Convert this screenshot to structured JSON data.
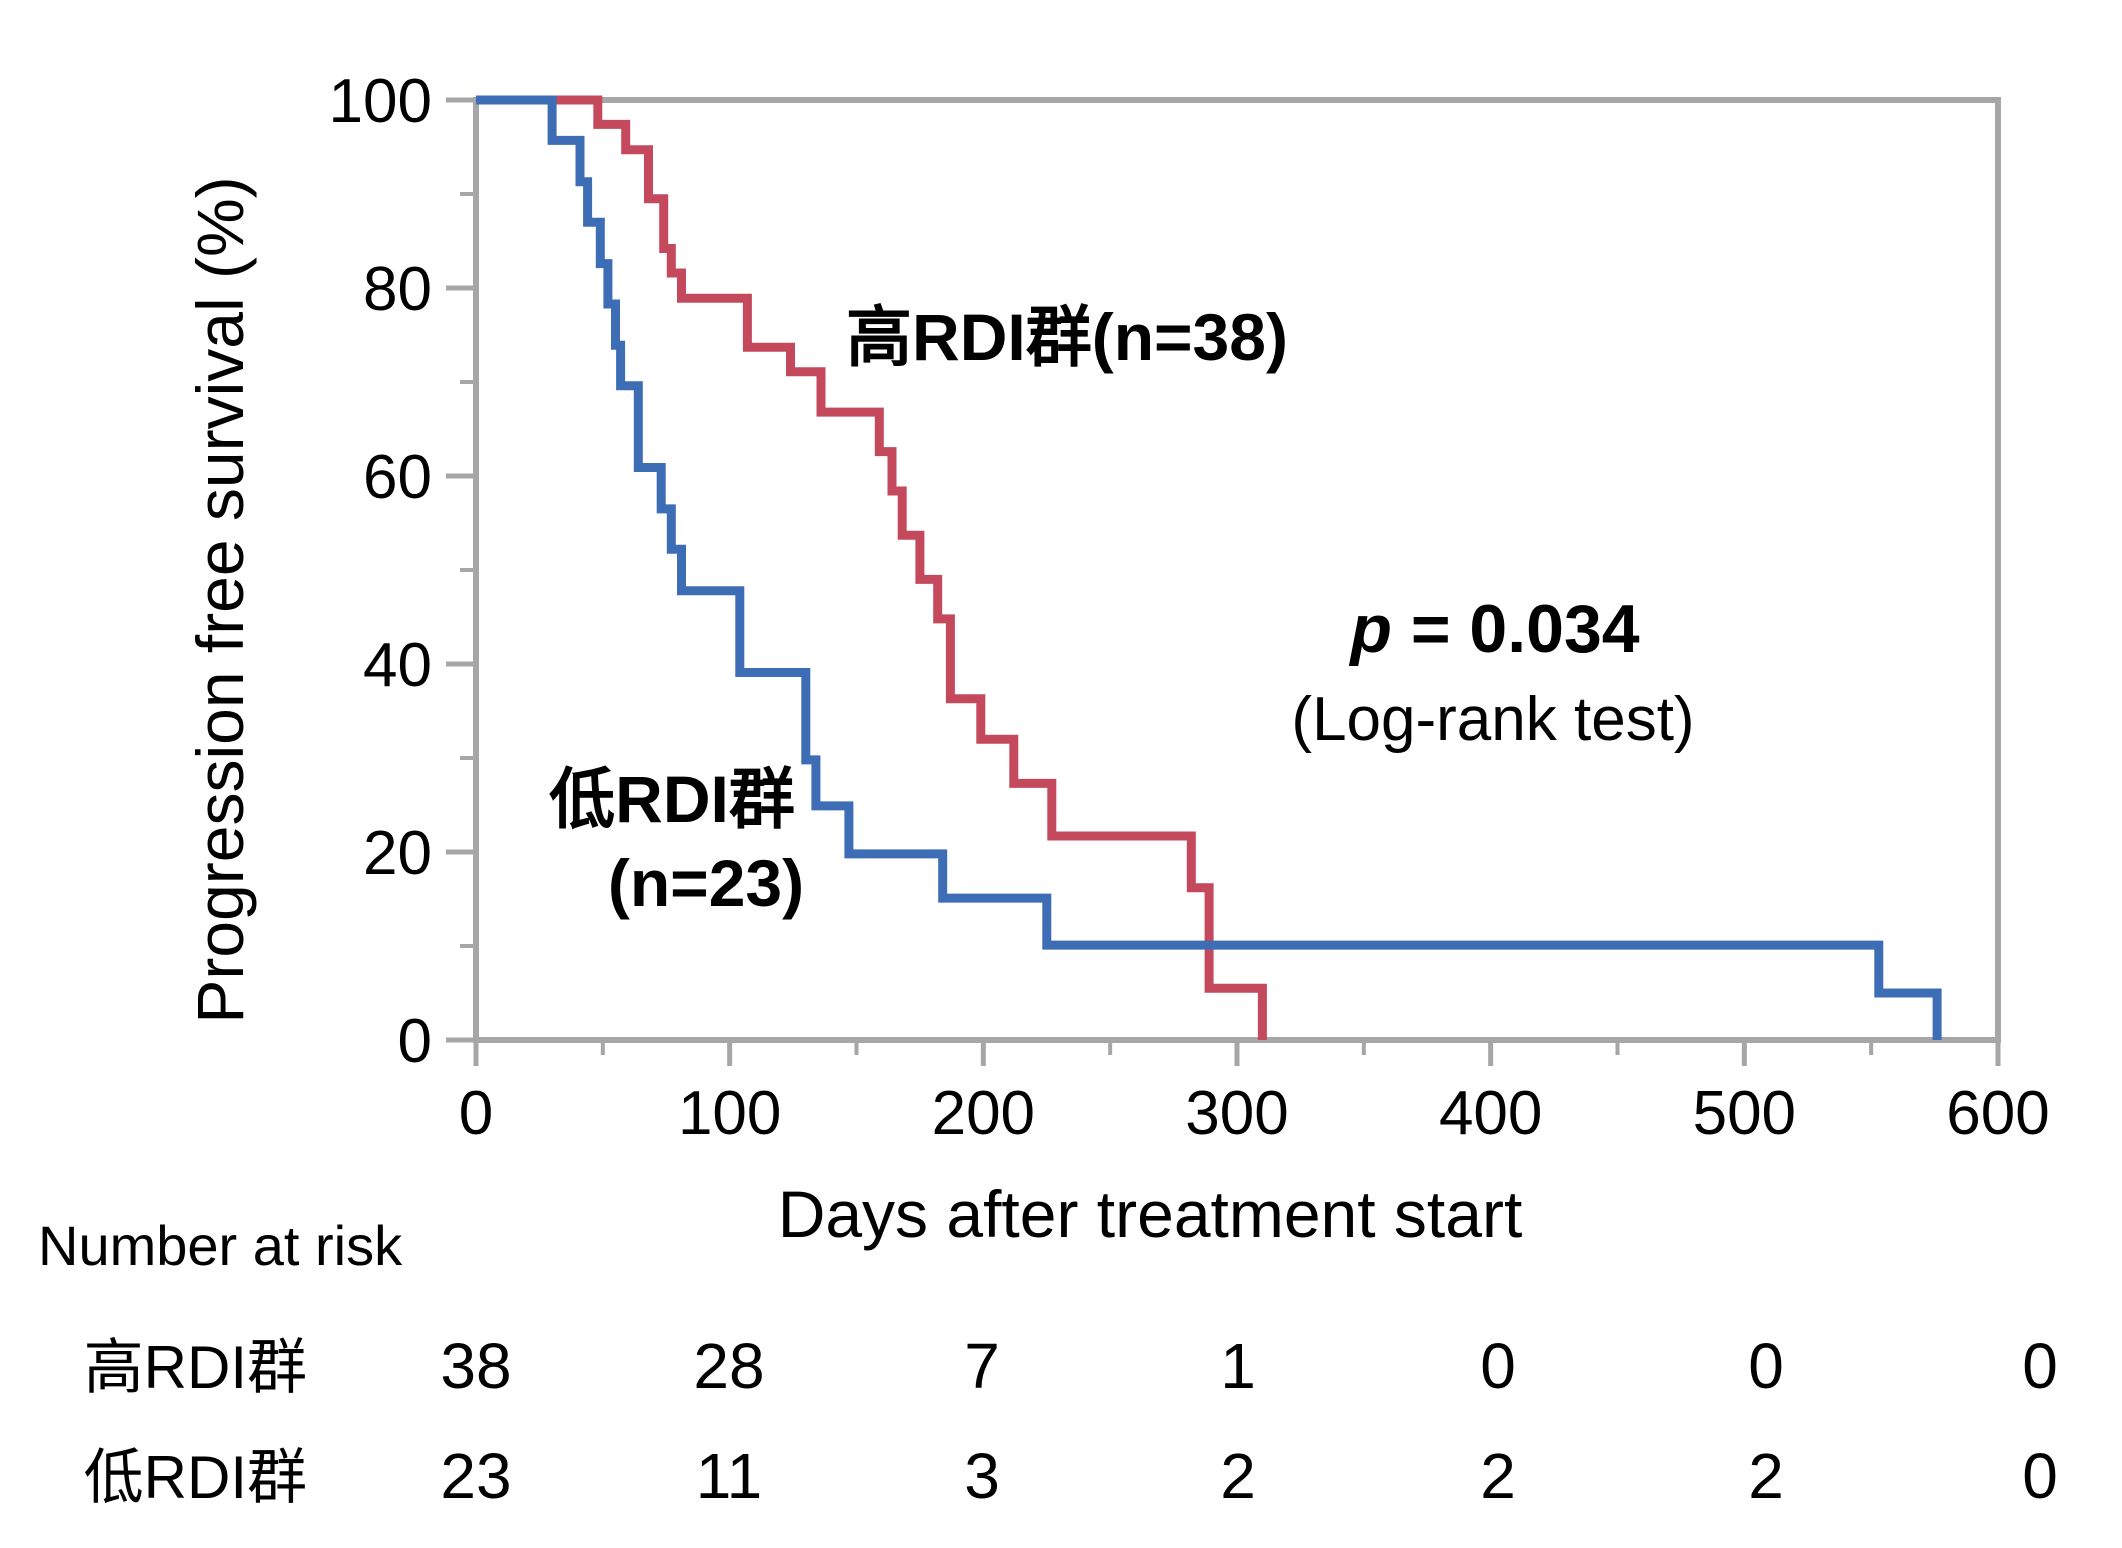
{
  "figure": {
    "background": "#FFFFFF",
    "axis_color": "#A6A6A6",
    "text_color": "#000000"
  },
  "chart_data": {
    "type": "line",
    "subtype": "kaplan-meier-step",
    "title": "",
    "xlabel": "Days after treatment start",
    "ylabel": "Progression free survival (%)",
    "xlim": [
      0,
      600
    ],
    "ylim": [
      0,
      100
    ],
    "xticks": [
      0,
      100,
      200,
      300,
      400,
      500,
      600
    ],
    "xticks_minor": [
      50,
      150,
      250,
      350,
      450,
      550
    ],
    "yticks": [
      0,
      20,
      40,
      60,
      80,
      100
    ],
    "yticks_minor": [
      10,
      30,
      50,
      70,
      90
    ],
    "grid": false,
    "legend_position": "inline-labels",
    "series": [
      {
        "name": "高RDI群(n=38)",
        "group": "high-RDI",
        "n": 38,
        "color": "#C4495D",
        "start": [
          0,
          100
        ],
        "steps": [
          [
            48,
            97.4
          ],
          [
            59,
            94.7
          ],
          [
            68,
            89.5
          ],
          [
            74,
            84.2
          ],
          [
            77,
            81.6
          ],
          [
            81,
            78.9
          ],
          [
            107,
            73.7
          ],
          [
            124,
            71.1
          ],
          [
            136,
            66.8
          ],
          [
            159,
            62.6
          ],
          [
            164,
            58.4
          ],
          [
            168,
            53.7
          ],
          [
            175,
            49.0
          ],
          [
            182,
            44.8
          ],
          [
            187,
            36.3
          ],
          [
            199,
            32.0
          ],
          [
            212,
            27.3
          ],
          [
            227,
            21.7
          ],
          [
            282,
            16.2
          ],
          [
            289,
            5.5
          ],
          [
            310,
            0
          ]
        ]
      },
      {
        "name": "低RDI群 (n=23)",
        "group": "low-RDI",
        "n": 23,
        "color": "#3D6DB5",
        "start": [
          0,
          100
        ],
        "steps": [
          [
            30,
            95.7
          ],
          [
            41,
            91.3
          ],
          [
            44,
            87.0
          ],
          [
            49,
            82.6
          ],
          [
            52,
            78.3
          ],
          [
            55,
            73.9
          ],
          [
            57,
            69.6
          ],
          [
            64,
            60.9
          ],
          [
            73,
            56.5
          ],
          [
            77,
            52.2
          ],
          [
            81,
            47.8
          ],
          [
            104,
            39.1
          ],
          [
            130,
            29.8
          ],
          [
            134,
            24.9
          ],
          [
            147,
            19.8
          ],
          [
            184,
            15.1
          ],
          [
            225,
            10.1
          ],
          [
            553,
            5.0
          ],
          [
            576,
            0
          ]
        ]
      }
    ],
    "annotations": {
      "p_prefix": "p",
      "p_rest": " = 0.034",
      "logrank": "(Log-rank test)",
      "label_high": "高RDI群(n=38)",
      "label_low_line1": "低RDI群",
      "label_low_line2": "(n=23)"
    }
  },
  "risk_table": {
    "header": "Number at risk",
    "time_points": [
      0,
      100,
      200,
      300,
      400,
      500,
      600
    ],
    "rows": [
      {
        "label": "高RDI群",
        "values": [
          38,
          28,
          7,
          1,
          0,
          0,
          0
        ]
      },
      {
        "label": "低RDI群",
        "values": [
          23,
          11,
          3,
          2,
          2,
          2,
          0
        ]
      }
    ]
  }
}
